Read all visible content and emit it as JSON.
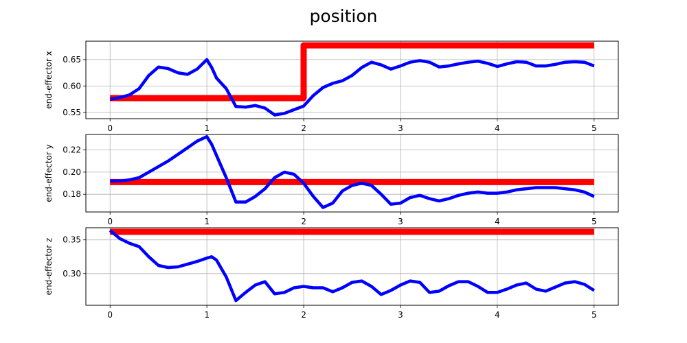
{
  "figure": {
    "title": "position"
  },
  "chart_data": [
    {
      "type": "line",
      "ylabel": "end-effector x",
      "xlim": [
        -0.25,
        5.25
      ],
      "ylim": [
        0.538,
        0.685
      ],
      "xticks": [
        0,
        1,
        2,
        3,
        4,
        5
      ],
      "yticks": [
        0.55,
        0.6,
        0.65
      ],
      "grid": true,
      "series": [
        {
          "color": "#ff0000",
          "line_width": "thick",
          "x": [
            0,
            2,
            2,
            5
          ],
          "y": [
            0.577,
            0.577,
            0.677,
            0.677
          ]
        },
        {
          "color": "#0000ff",
          "line_width": "medium",
          "x": [
            0,
            0.1,
            0.2,
            0.3,
            0.4,
            0.5,
            0.6,
            0.7,
            0.8,
            0.9,
            1.0,
            1.05,
            1.1,
            1.2,
            1.3,
            1.4,
            1.5,
            1.6,
            1.7,
            1.8,
            1.9,
            2.0,
            2.1,
            2.2,
            2.3,
            2.4,
            2.5,
            2.6,
            2.7,
            2.8,
            2.9,
            3.0,
            3.1,
            3.2,
            3.3,
            3.4,
            3.5,
            3.6,
            3.7,
            3.8,
            3.9,
            4.0,
            4.1,
            4.2,
            4.3,
            4.4,
            4.5,
            4.6,
            4.7,
            4.8,
            4.9,
            5.0
          ],
          "y": [
            0.575,
            0.578,
            0.583,
            0.595,
            0.62,
            0.636,
            0.633,
            0.625,
            0.622,
            0.632,
            0.65,
            0.635,
            0.615,
            0.595,
            0.561,
            0.56,
            0.563,
            0.558,
            0.545,
            0.548,
            0.555,
            0.562,
            0.582,
            0.597,
            0.605,
            0.61,
            0.62,
            0.635,
            0.645,
            0.64,
            0.632,
            0.638,
            0.645,
            0.648,
            0.645,
            0.636,
            0.638,
            0.642,
            0.645,
            0.647,
            0.643,
            0.637,
            0.642,
            0.646,
            0.645,
            0.638,
            0.638,
            0.641,
            0.645,
            0.646,
            0.645,
            0.638
          ]
        }
      ]
    },
    {
      "type": "line",
      "ylabel": "end-effector y",
      "xlim": [
        -0.25,
        5.25
      ],
      "ylim": [
        0.164,
        0.234
      ],
      "xticks": [
        0,
        1,
        2,
        3,
        4,
        5
      ],
      "yticks": [
        0.18,
        0.2,
        0.22
      ],
      "grid": true,
      "series": [
        {
          "color": "#ff0000",
          "line_width": "thick",
          "x": [
            0,
            5
          ],
          "y": [
            0.191,
            0.191
          ]
        },
        {
          "color": "#0000ff",
          "line_width": "medium",
          "x": [
            0,
            0.1,
            0.2,
            0.3,
            0.4,
            0.5,
            0.6,
            0.7,
            0.8,
            0.9,
            1.0,
            1.05,
            1.1,
            1.2,
            1.3,
            1.4,
            1.5,
            1.6,
            1.7,
            1.8,
            1.9,
            2.0,
            2.1,
            2.2,
            2.3,
            2.4,
            2.5,
            2.6,
            2.7,
            2.8,
            2.9,
            3.0,
            3.1,
            3.2,
            3.3,
            3.4,
            3.5,
            3.6,
            3.7,
            3.8,
            3.9,
            4.0,
            4.1,
            4.2,
            4.3,
            4.4,
            4.5,
            4.6,
            4.7,
            4.8,
            4.9,
            5.0
          ],
          "y": [
            0.192,
            0.192,
            0.193,
            0.195,
            0.2,
            0.205,
            0.21,
            0.216,
            0.222,
            0.228,
            0.232,
            0.225,
            0.215,
            0.195,
            0.173,
            0.173,
            0.178,
            0.185,
            0.195,
            0.2,
            0.198,
            0.19,
            0.178,
            0.168,
            0.172,
            0.183,
            0.188,
            0.19,
            0.188,
            0.18,
            0.171,
            0.172,
            0.177,
            0.179,
            0.176,
            0.174,
            0.176,
            0.179,
            0.181,
            0.182,
            0.181,
            0.181,
            0.182,
            0.184,
            0.185,
            0.186,
            0.186,
            0.186,
            0.185,
            0.184,
            0.182,
            0.178
          ]
        }
      ]
    },
    {
      "type": "line",
      "ylabel": "end-effector z",
      "xlim": [
        -0.25,
        5.25
      ],
      "ylim": [
        0.253,
        0.368
      ],
      "xticks": [
        0,
        1,
        2,
        3,
        4,
        5
      ],
      "yticks": [
        0.3,
        0.35
      ],
      "grid": true,
      "series": [
        {
          "color": "#ff0000",
          "line_width": "thick",
          "x": [
            0,
            5
          ],
          "y": [
            0.362,
            0.362
          ]
        },
        {
          "color": "#0000ff",
          "line_width": "medium",
          "x": [
            0,
            0.1,
            0.2,
            0.3,
            0.4,
            0.5,
            0.6,
            0.7,
            0.8,
            0.9,
            1.0,
            1.05,
            1.1,
            1.2,
            1.3,
            1.4,
            1.5,
            1.6,
            1.7,
            1.8,
            1.9,
            2.0,
            2.1,
            2.2,
            2.3,
            2.4,
            2.5,
            2.6,
            2.7,
            2.8,
            2.9,
            3.0,
            3.1,
            3.2,
            3.3,
            3.4,
            3.5,
            3.6,
            3.7,
            3.8,
            3.9,
            4.0,
            4.1,
            4.2,
            4.3,
            4.4,
            4.5,
            4.6,
            4.7,
            4.8,
            4.9,
            5.0
          ],
          "y": [
            0.364,
            0.352,
            0.345,
            0.34,
            0.325,
            0.312,
            0.309,
            0.31,
            0.314,
            0.318,
            0.323,
            0.325,
            0.32,
            0.295,
            0.26,
            0.272,
            0.283,
            0.288,
            0.27,
            0.272,
            0.279,
            0.281,
            0.279,
            0.279,
            0.273,
            0.279,
            0.287,
            0.289,
            0.281,
            0.269,
            0.275,
            0.283,
            0.289,
            0.287,
            0.272,
            0.274,
            0.282,
            0.288,
            0.288,
            0.281,
            0.272,
            0.272,
            0.277,
            0.283,
            0.286,
            0.277,
            0.274,
            0.28,
            0.286,
            0.288,
            0.284,
            0.275
          ]
        }
      ]
    }
  ]
}
